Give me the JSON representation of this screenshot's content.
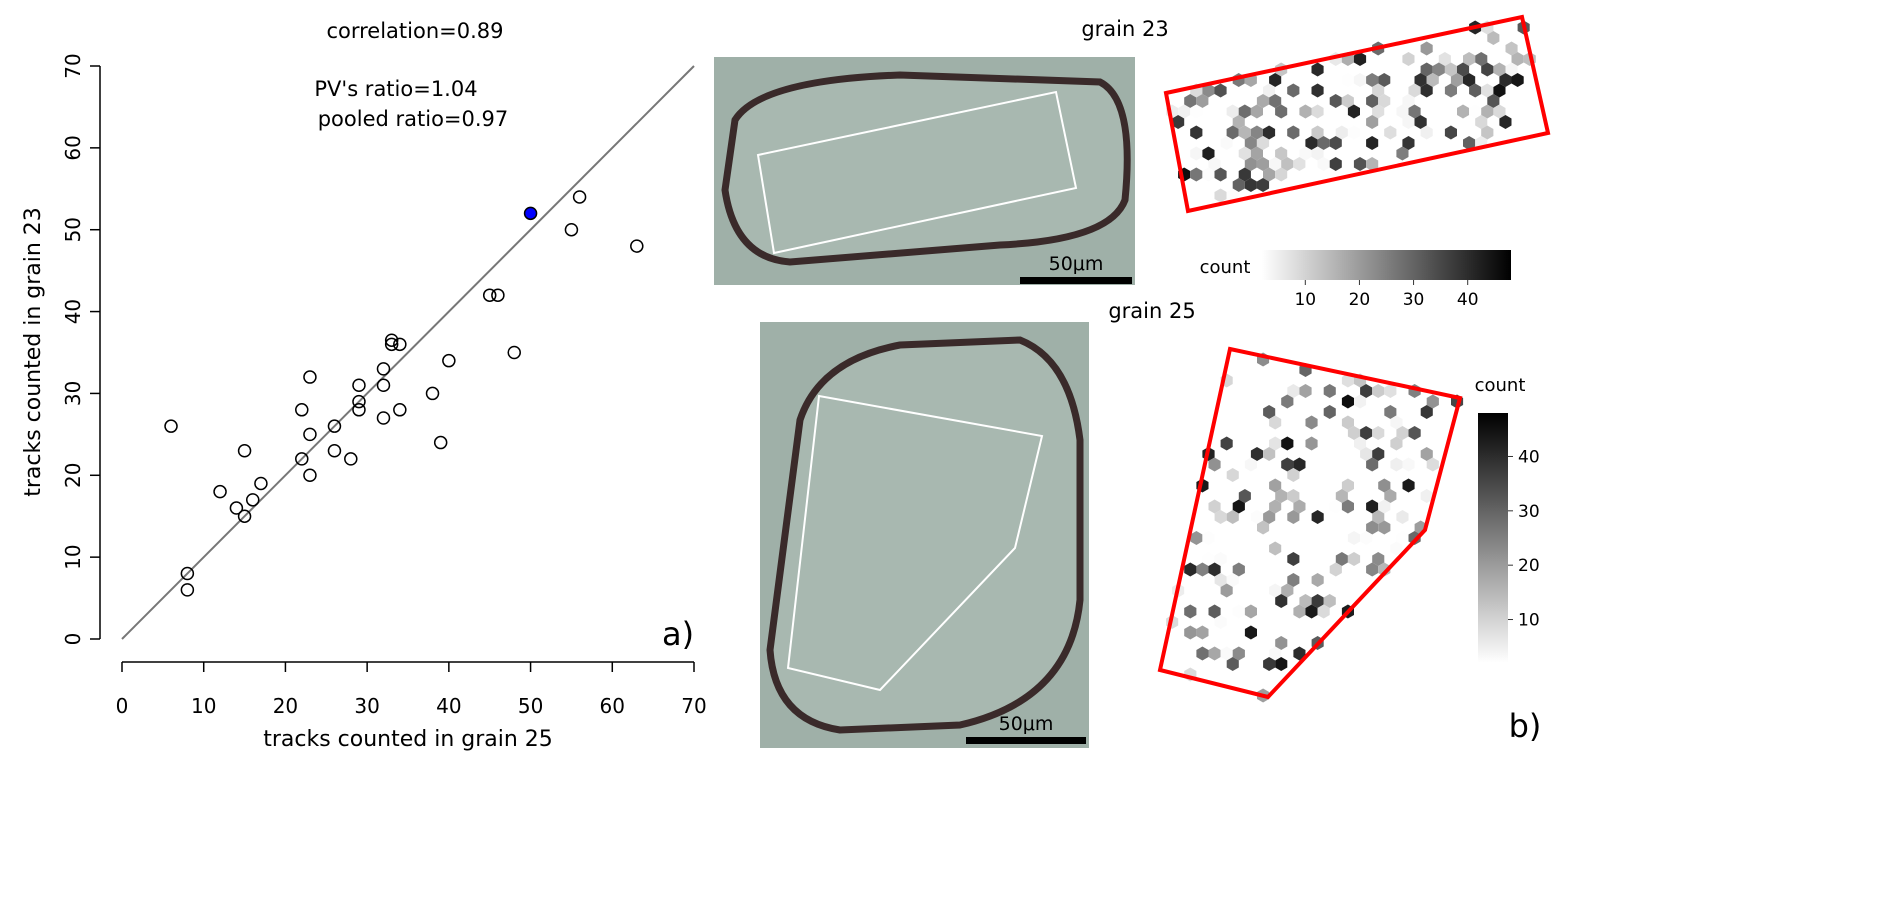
{
  "chart_data": [
    {
      "type": "scatter",
      "panel_label": "a)",
      "annotations": [
        "correlation=0.89",
        "PV's ratio=1.04",
        "pooled ratio=0.97"
      ],
      "xlabel": "tracks counted in grain 25",
      "ylabel": "tracks counted in grain 23",
      "xlim": [
        0,
        70
      ],
      "ylim": [
        0,
        70
      ],
      "xticks": [
        0,
        10,
        20,
        30,
        40,
        50,
        60,
        70
      ],
      "yticks": [
        0,
        10,
        20,
        30,
        40,
        50,
        60,
        70
      ],
      "reference_line": "y = x",
      "reference_line_color": "#777777",
      "grid": false,
      "points": [
        {
          "x": 6,
          "y": 26
        },
        {
          "x": 8,
          "y": 8
        },
        {
          "x": 8,
          "y": 6
        },
        {
          "x": 12,
          "y": 18
        },
        {
          "x": 14,
          "y": 16
        },
        {
          "x": 15,
          "y": 15
        },
        {
          "x": 15,
          "y": 23
        },
        {
          "x": 16,
          "y": 17
        },
        {
          "x": 17,
          "y": 19
        },
        {
          "x": 22,
          "y": 28
        },
        {
          "x": 22,
          "y": 22
        },
        {
          "x": 23,
          "y": 32
        },
        {
          "x": 23,
          "y": 25
        },
        {
          "x": 23,
          "y": 20
        },
        {
          "x": 26,
          "y": 26
        },
        {
          "x": 26,
          "y": 23
        },
        {
          "x": 28,
          "y": 22
        },
        {
          "x": 29,
          "y": 31
        },
        {
          "x": 29,
          "y": 29
        },
        {
          "x": 29,
          "y": 28
        },
        {
          "x": 32,
          "y": 33
        },
        {
          "x": 32,
          "y": 31
        },
        {
          "x": 32,
          "y": 27
        },
        {
          "x": 33,
          "y": 36.5
        },
        {
          "x": 33,
          "y": 36
        },
        {
          "x": 34,
          "y": 36
        },
        {
          "x": 34,
          "y": 28
        },
        {
          "x": 38,
          "y": 30
        },
        {
          "x": 39,
          "y": 24
        },
        {
          "x": 40,
          "y": 34
        },
        {
          "x": 45,
          "y": 42
        },
        {
          "x": 46,
          "y": 42
        },
        {
          "x": 48,
          "y": 35
        },
        {
          "x": 55,
          "y": 50
        },
        {
          "x": 56,
          "y": 54
        },
        {
          "x": 63,
          "y": 48
        }
      ],
      "highlight_point": {
        "x": 50,
        "y": 52,
        "color": "#0000ff"
      }
    },
    {
      "type": "heatmap",
      "panel_label": "b)",
      "panels": [
        {
          "title": "grain 23",
          "scale_bar": "50μm",
          "colorbar_title": "count",
          "colorbar_ticks": [
            10,
            20,
            30,
            40
          ],
          "colorbar_orientation": "horizontal",
          "outline_color": "#ff0000"
        },
        {
          "title": "grain 25",
          "scale_bar": "50μm",
          "colorbar_title": "count",
          "colorbar_ticks": [
            10,
            20,
            30,
            40
          ],
          "colorbar_orientation": "vertical",
          "outline_color": "#ff0000"
        }
      ]
    }
  ]
}
